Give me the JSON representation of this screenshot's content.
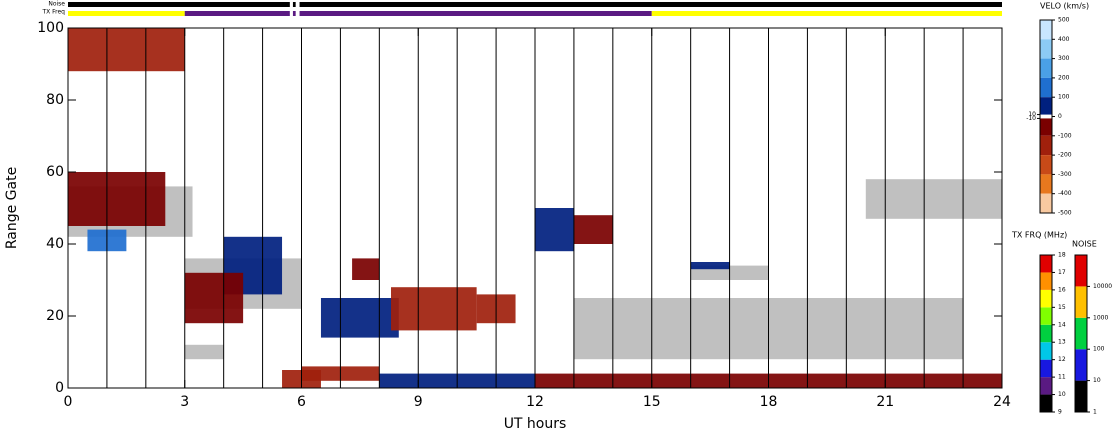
{
  "chart_data": {
    "type": "range-time",
    "xlabel": "UT hours",
    "ylabel": "Range Gate",
    "xlim": [
      0,
      24
    ],
    "ylim": [
      0,
      100
    ],
    "xticks": [
      0,
      3,
      6,
      9,
      12,
      15,
      18,
      21,
      24
    ],
    "yticks": [
      0,
      20,
      40,
      60,
      80,
      100
    ],
    "vlines": [
      1,
      2,
      3,
      4,
      5,
      6,
      7,
      8,
      9,
      10,
      11,
      12,
      13,
      14,
      15,
      16,
      17,
      18,
      19,
      20,
      21,
      22,
      23
    ],
    "noise_bar": {
      "label": "Noise",
      "segments": [
        {
          "t": [
            0,
            5.7
          ],
          "color": "#000000"
        },
        {
          "t": [
            5.78,
            5.85
          ],
          "color": "#000000"
        },
        {
          "t": [
            5.95,
            24
          ],
          "color": "#000000"
        }
      ]
    },
    "tx_bar": {
      "label": "TX Freq",
      "segments": [
        {
          "t": [
            0,
            3
          ],
          "color": "#ffff00"
        },
        {
          "t": [
            3,
            5.7
          ],
          "color": "#5a1a82"
        },
        {
          "t": [
            5.78,
            5.85
          ],
          "color": "#5a1a82"
        },
        {
          "t": [
            5.95,
            15
          ],
          "color": "#5a1a82"
        },
        {
          "t": [
            15,
            24
          ],
          "color": "#ffff00"
        }
      ]
    },
    "ground_scatter_color": "#c0c0c0",
    "ground_scatter": [
      {
        "t": [
          0,
          3.2
        ],
        "g": [
          42,
          56
        ]
      },
      {
        "t": [
          3,
          6
        ],
        "g": [
          22,
          36
        ]
      },
      {
        "t": [
          13,
          23
        ],
        "g": [
          8,
          25
        ]
      },
      {
        "t": [
          20.5,
          24
        ],
        "g": [
          47,
          58
        ]
      },
      {
        "t": [
          16,
          18
        ],
        "g": [
          30,
          34
        ]
      },
      {
        "t": [
          3,
          4
        ],
        "g": [
          8,
          12
        ]
      }
    ],
    "velocity_patches": [
      {
        "t": [
          6.5,
          8.5
        ],
        "g": [
          14,
          25
        ],
        "v": 50
      },
      {
        "t": [
          4,
          5.5
        ],
        "g": [
          26,
          42
        ],
        "v": 80
      },
      {
        "t": [
          12,
          13
        ],
        "g": [
          38,
          50
        ],
        "v": 80
      },
      {
        "t": [
          0.5,
          1.5
        ],
        "g": [
          38,
          44
        ],
        "v": 150
      },
      {
        "t": [
          8,
          12
        ],
        "g": [
          0,
          4
        ],
        "v": 80
      },
      {
        "t": [
          16,
          17
        ],
        "g": [
          33,
          35
        ],
        "v": 80
      },
      {
        "t": [
          8.3,
          10.5
        ],
        "g": [
          16,
          28
        ],
        "v": -150
      },
      {
        "t": [
          10.5,
          11.5
        ],
        "g": [
          18,
          26
        ],
        "v": -150
      },
      {
        "t": [
          0,
          2.5
        ],
        "g": [
          45,
          60
        ],
        "v": -80
      },
      {
        "t": [
          3,
          4.5
        ],
        "g": [
          18,
          32
        ],
        "v": -80
      },
      {
        "t": [
          12,
          24
        ],
        "g": [
          0,
          4
        ],
        "v": -80
      },
      {
        "t": [
          6,
          8
        ],
        "g": [
          2,
          6
        ],
        "v": -150
      },
      {
        "t": [
          0,
          3
        ],
        "g": [
          88,
          100
        ],
        "v": -150
      },
      {
        "t": [
          7.3,
          8
        ],
        "g": [
          30,
          36
        ],
        "v": -80
      },
      {
        "t": [
          13,
          14
        ],
        "g": [
          40,
          48
        ],
        "v": -80
      },
      {
        "t": [
          5.5,
          6.5
        ],
        "g": [
          0,
          5
        ],
        "v": -150
      }
    ],
    "velo_scale": {
      "title": "VELO (km/s)",
      "lim": [
        -500,
        500
      ],
      "ticks": [
        500,
        400,
        300,
        200,
        100,
        10,
        0,
        -10,
        -100,
        -200,
        -300,
        -400,
        -500
      ],
      "colors": [
        "#c8e6ff",
        "#8ccbf5",
        "#4aa0e6",
        "#1f6fd0",
        "#00207f",
        "#7a0000",
        "#a0200c",
        "#c84a18",
        "#e8781e",
        "#f8c9a0"
      ]
    },
    "freq_scale": {
      "title": "TX FRQ (MHz)",
      "lim": [
        9,
        18
      ],
      "ticks": [
        18,
        17,
        16,
        15,
        14,
        13,
        12,
        11,
        10,
        9
      ],
      "colors": [
        "#000000",
        "#5a1a82",
        "#1818e0",
        "#00c8e8",
        "#00d040",
        "#80ff00",
        "#ffff00",
        "#ff9000",
        "#e00000"
      ]
    },
    "noise_scale": {
      "title": "NOISE",
      "lim": [
        1,
        100000
      ],
      "ticks": [
        10000,
        1000,
        100,
        10,
        1
      ],
      "colors": [
        "#000000",
        "#1818e0",
        "#00d040",
        "#ffc000",
        "#e00000"
      ]
    }
  }
}
